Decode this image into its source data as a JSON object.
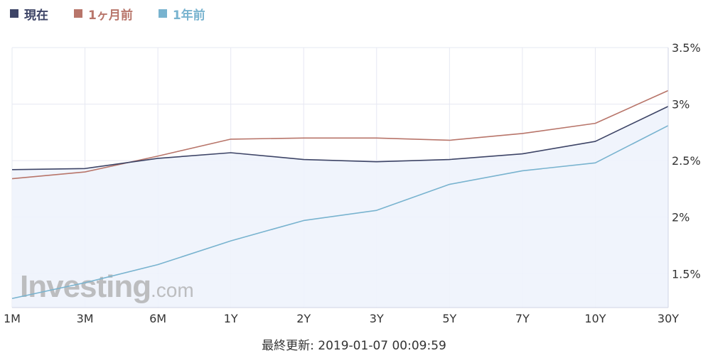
{
  "chart_data": {
    "type": "line",
    "categories": [
      "1M",
      "3M",
      "6M",
      "1Y",
      "2Y",
      "3Y",
      "5Y",
      "7Y",
      "10Y",
      "30Y"
    ],
    "series": [
      {
        "name": "現在",
        "color": "#3d4466",
        "values": [
          2.42,
          2.43,
          2.52,
          2.57,
          2.51,
          2.49,
          2.51,
          2.56,
          2.67,
          2.98
        ]
      },
      {
        "name": "1ヶ月前",
        "color": "#b8756a",
        "values": [
          2.34,
          2.4,
          2.54,
          2.69,
          2.7,
          2.7,
          2.68,
          2.74,
          2.83,
          3.12
        ]
      },
      {
        "name": "1年前",
        "color": "#78b3cf",
        "values": [
          1.28,
          1.42,
          1.58,
          1.79,
          1.97,
          2.06,
          2.29,
          2.41,
          2.48,
          2.81
        ]
      }
    ],
    "yticks": [
      "1.5%",
      "2%",
      "2.5%",
      "3%",
      "3.5%"
    ],
    "ytick_values": [
      1.5,
      2.0,
      2.5,
      3.0,
      3.5
    ],
    "ylim": [
      1.2,
      3.5
    ],
    "y_axis_position": "right",
    "grid": true,
    "legend_position": "top-left",
    "area_fill_series": "現在",
    "area_fill_color": "#eef3fc"
  },
  "watermark": {
    "brand": "Investing",
    "suffix": ".com"
  },
  "footer": {
    "last_updated": "最終更新: 2019-01-07 00:09:59"
  }
}
